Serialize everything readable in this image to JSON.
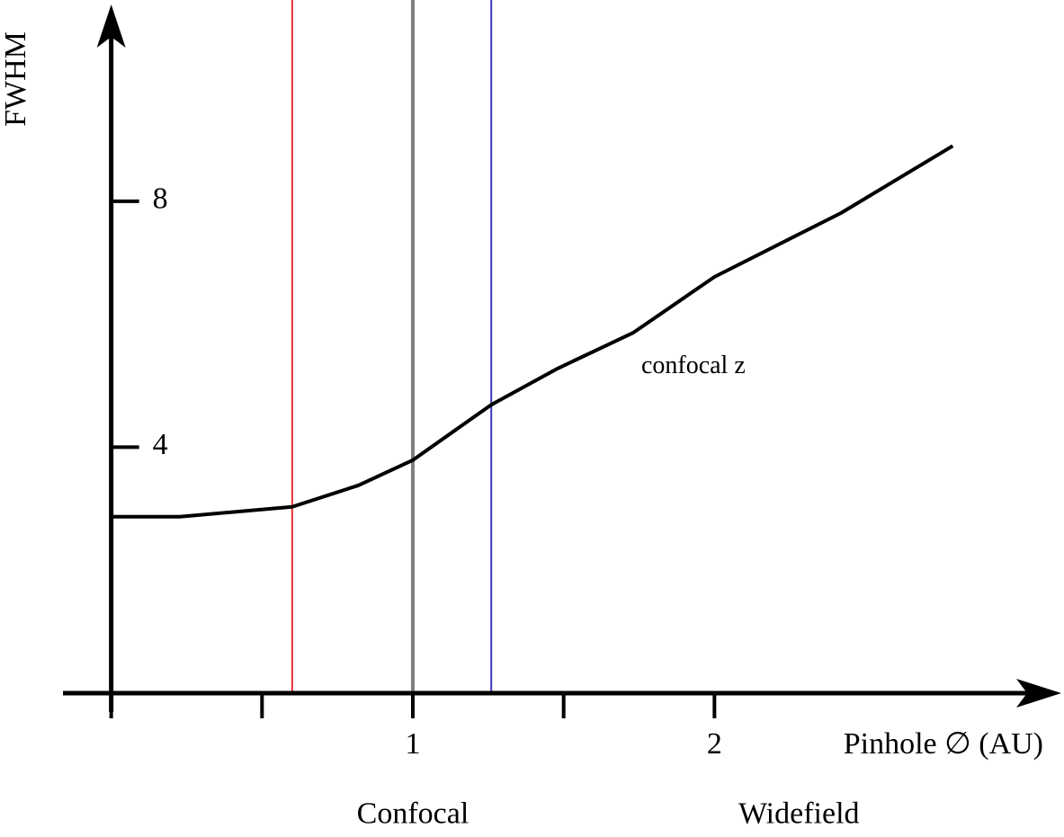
{
  "chart_data": {
    "type": "line",
    "y_label": "FWHM",
    "x_label": "Pinhole ∅ (AU)",
    "x": [
      0,
      0.227,
      0.6,
      0.82,
      1.0,
      1.26,
      1.48,
      1.73,
      2.0,
      2.42,
      2.79
    ],
    "values": [
      2.87,
      2.87,
      3.03,
      3.38,
      3.79,
      4.69,
      5.28,
      5.86,
      6.77,
      7.81,
      8.9
    ],
    "color": "#000000",
    "xlim": [
      -0.16,
      3.15
    ],
    "ylim": [
      0,
      11.2
    ],
    "xticks": [
      1,
      2
    ],
    "x_minor_ticks": [
      0,
      0.5,
      1.5
    ],
    "yticks": [
      4,
      8
    ],
    "vlines": [
      {
        "x": 0.6,
        "color": "#e8312f"
      },
      {
        "x": 1.0,
        "color": "#808080"
      },
      {
        "x": 1.26,
        "color": "#3a3ab8"
      }
    ],
    "annotations": [
      {
        "text": "confocal z",
        "x": 1.93,
        "y": 5.3
      },
      {
        "text": "Confocal",
        "x": 1.0,
        "y": -2.0
      },
      {
        "text": "Widefield",
        "x": 2.28,
        "y": -2.0
      }
    ]
  }
}
